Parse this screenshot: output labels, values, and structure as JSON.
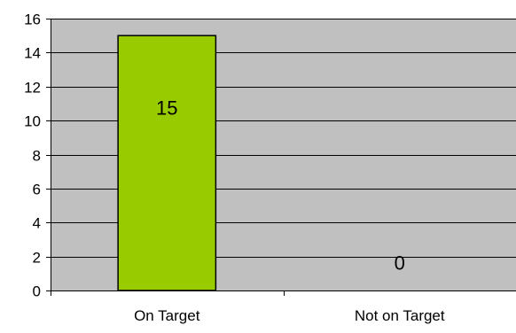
{
  "chart_data": {
    "type": "bar",
    "title": "",
    "xlabel": "",
    "ylabel": "",
    "categories": [
      "On Target",
      "Not on Target"
    ],
    "values": [
      15,
      0
    ],
    "data_labels": [
      "15",
      "0"
    ],
    "ylim": [
      0,
      16
    ],
    "yticks": [
      0,
      2,
      4,
      6,
      8,
      10,
      12,
      14,
      16
    ],
    "ytick_labels": [
      "0",
      "2",
      "4",
      "6",
      "8",
      "10",
      "12",
      "14",
      "16"
    ],
    "grid": true,
    "legend": "none",
    "colors": {
      "bar": "#99CC00",
      "plot_background": "#C0C0C0",
      "gridline": "#000000",
      "bar_border": "#000000"
    }
  }
}
